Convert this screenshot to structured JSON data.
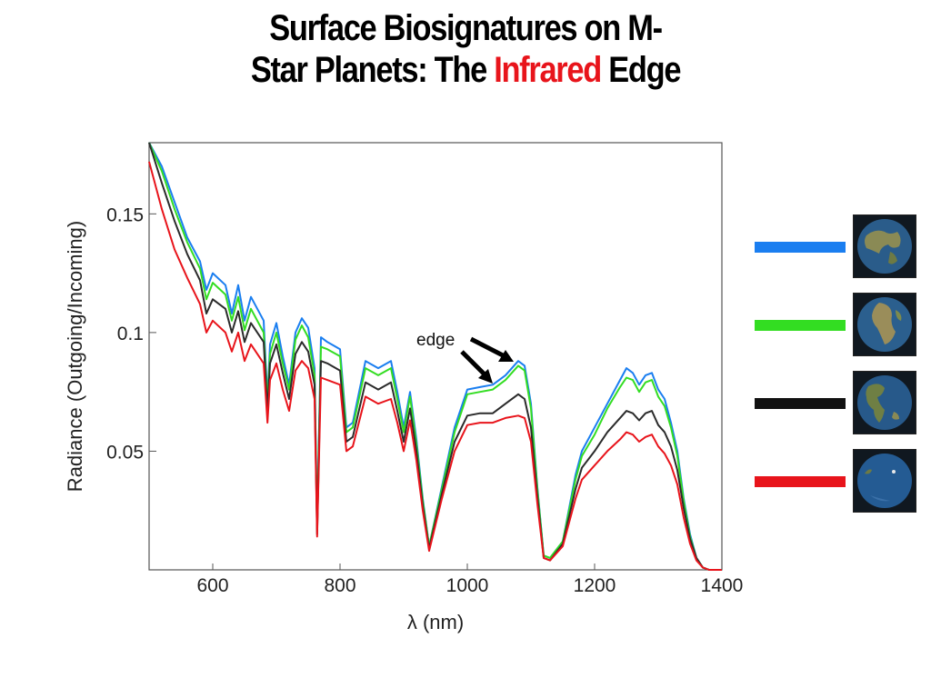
{
  "slide": {
    "title_line1": "Surface Biosignatures on M-",
    "title_line2_pre": "Star Planets: The ",
    "title_line2_accent": "Infrared",
    "title_line2_post": " Edge",
    "accent_color": "#e8141b"
  },
  "chart_data": {
    "type": "line",
    "title": "",
    "xlabel": "λ (nm)",
    "ylabel": "Radiance (Outgoing/Incoming)",
    "xlim": [
      500,
      1400
    ],
    "ylim": [
      0,
      0.18
    ],
    "x_ticks": [
      600,
      800,
      1000,
      1200,
      1400
    ],
    "y_ticks": [
      0.05,
      0.1,
      0.15
    ],
    "y_tick_labels": [
      "0.05",
      "0.1",
      "0.15"
    ],
    "grid": false,
    "annotation": {
      "text": "edge",
      "x": 1060,
      "y": 0.085
    },
    "x": [
      500,
      520,
      540,
      560,
      580,
      590,
      600,
      620,
      630,
      640,
      650,
      660,
      680,
      686,
      690,
      700,
      710,
      720,
      730,
      740,
      750,
      760,
      764,
      770,
      780,
      800,
      810,
      820,
      840,
      860,
      880,
      890,
      900,
      910,
      920,
      930,
      940,
      960,
      980,
      1000,
      1020,
      1040,
      1060,
      1080,
      1090,
      1100,
      1110,
      1120,
      1130,
      1150,
      1170,
      1180,
      1200,
      1220,
      1240,
      1250,
      1260,
      1270,
      1280,
      1290,
      1300,
      1310,
      1320,
      1330,
      1340,
      1350,
      1360,
      1370,
      1380,
      1400
    ],
    "series": [
      {
        "color": "#1a7ef0",
        "values": [
          0.18,
          0.17,
          0.155,
          0.14,
          0.13,
          0.118,
          0.125,
          0.12,
          0.108,
          0.12,
          0.105,
          0.115,
          0.105,
          0.072,
          0.095,
          0.104,
          0.09,
          0.078,
          0.1,
          0.106,
          0.102,
          0.085,
          0.018,
          0.098,
          0.096,
          0.093,
          0.06,
          0.062,
          0.088,
          0.085,
          0.088,
          0.075,
          0.06,
          0.075,
          0.055,
          0.03,
          0.01,
          0.035,
          0.06,
          0.076,
          0.077,
          0.078,
          0.082,
          0.088,
          0.086,
          0.07,
          0.035,
          0.006,
          0.005,
          0.012,
          0.04,
          0.05,
          0.06,
          0.07,
          0.08,
          0.085,
          0.083,
          0.078,
          0.082,
          0.083,
          0.076,
          0.072,
          0.062,
          0.05,
          0.03,
          0.015,
          0.005,
          0.001,
          0.0,
          0.0
        ]
      },
      {
        "color": "#33dd22",
        "values": [
          0.18,
          0.168,
          0.152,
          0.138,
          0.127,
          0.114,
          0.121,
          0.116,
          0.105,
          0.115,
          0.101,
          0.11,
          0.1,
          0.07,
          0.091,
          0.1,
          0.087,
          0.076,
          0.097,
          0.103,
          0.098,
          0.082,
          0.017,
          0.094,
          0.093,
          0.09,
          0.058,
          0.06,
          0.085,
          0.082,
          0.085,
          0.072,
          0.058,
          0.073,
          0.053,
          0.029,
          0.01,
          0.034,
          0.058,
          0.074,
          0.075,
          0.076,
          0.08,
          0.086,
          0.084,
          0.068,
          0.034,
          0.006,
          0.005,
          0.012,
          0.038,
          0.048,
          0.057,
          0.068,
          0.077,
          0.081,
          0.08,
          0.075,
          0.079,
          0.08,
          0.073,
          0.069,
          0.06,
          0.048,
          0.029,
          0.014,
          0.005,
          0.001,
          0.0,
          0.0
        ]
      },
      {
        "color": "#2b2b2b",
        "values": [
          0.18,
          0.163,
          0.147,
          0.133,
          0.122,
          0.108,
          0.114,
          0.11,
          0.1,
          0.109,
          0.096,
          0.104,
          0.096,
          0.067,
          0.087,
          0.095,
          0.083,
          0.072,
          0.091,
          0.096,
          0.092,
          0.078,
          0.015,
          0.088,
          0.087,
          0.084,
          0.054,
          0.056,
          0.079,
          0.076,
          0.079,
          0.067,
          0.054,
          0.068,
          0.05,
          0.027,
          0.009,
          0.032,
          0.054,
          0.065,
          0.066,
          0.066,
          0.07,
          0.074,
          0.072,
          0.06,
          0.031,
          0.005,
          0.004,
          0.011,
          0.034,
          0.043,
          0.05,
          0.058,
          0.064,
          0.067,
          0.066,
          0.063,
          0.066,
          0.067,
          0.061,
          0.058,
          0.052,
          0.042,
          0.026,
          0.013,
          0.005,
          0.001,
          0.0,
          0.0
        ]
      },
      {
        "color": "#e8141b",
        "values": [
          0.172,
          0.152,
          0.135,
          0.123,
          0.112,
          0.1,
          0.105,
          0.1,
          0.092,
          0.1,
          0.088,
          0.095,
          0.087,
          0.062,
          0.08,
          0.087,
          0.076,
          0.067,
          0.084,
          0.088,
          0.085,
          0.072,
          0.014,
          0.081,
          0.08,
          0.078,
          0.05,
          0.052,
          0.073,
          0.07,
          0.072,
          0.062,
          0.05,
          0.063,
          0.046,
          0.025,
          0.008,
          0.03,
          0.05,
          0.061,
          0.062,
          0.062,
          0.064,
          0.065,
          0.064,
          0.054,
          0.028,
          0.005,
          0.004,
          0.01,
          0.03,
          0.038,
          0.044,
          0.05,
          0.055,
          0.058,
          0.057,
          0.054,
          0.056,
          0.057,
          0.052,
          0.049,
          0.044,
          0.036,
          0.022,
          0.011,
          0.004,
          0.001,
          0.0,
          0.0
        ]
      }
    ]
  },
  "legend": {
    "items": [
      {
        "color": "#1a7ef0",
        "icon": "globe-icon"
      },
      {
        "color": "#33dd22",
        "icon": "globe-icon"
      },
      {
        "color": "#111111",
        "icon": "globe-icon"
      },
      {
        "color": "#e8141b",
        "icon": "globe-icon"
      }
    ]
  }
}
